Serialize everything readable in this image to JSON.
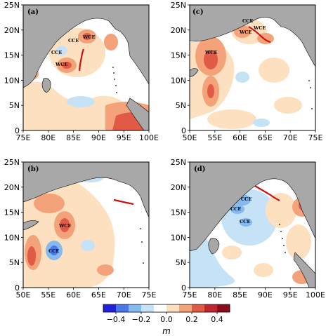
{
  "chart_data": [
    {
      "type": "heatmap",
      "panel_label": "(a)",
      "xticks": [
        "75E",
        "80E",
        "85E",
        "90E",
        "95E",
        "100E"
      ],
      "yticks": [
        "0",
        "5N",
        "10N",
        "15N",
        "20N",
        "25N"
      ],
      "xlim": [
        75,
        100
      ],
      "ylim": [
        0,
        25
      ],
      "annotations": [
        "CCE",
        "CCE",
        "WCE",
        "WCE"
      ]
    },
    {
      "type": "heatmap",
      "panel_label": "(c)",
      "xticks": [
        "50E",
        "55E",
        "60E",
        "65E",
        "70E",
        "75E"
      ],
      "yticks": [
        "0",
        "5N",
        "10N",
        "15N",
        "20N",
        "25N"
      ],
      "xlim": [
        50,
        75
      ],
      "ylim": [
        0,
        25
      ],
      "annotations": [
        "CCE",
        "WCE",
        "WCE",
        "WCE"
      ]
    },
    {
      "type": "heatmap",
      "panel_label": "(b)",
      "xticks": [
        "50E",
        "55E",
        "60E",
        "65E",
        "70E",
        "75E"
      ],
      "yticks": [
        "0",
        "5N",
        "10N",
        "15N",
        "20N",
        "25N"
      ],
      "xlim": [
        50,
        75
      ],
      "ylim": [
        0,
        25
      ],
      "annotations": [
        "WCE",
        "CCE"
      ]
    },
    {
      "type": "heatmap",
      "panel_label": "(d)",
      "xticks": [
        "75E",
        "80E",
        "85E",
        "90E",
        "95E",
        "100E"
      ],
      "yticks": [
        "0",
        "5N",
        "10N",
        "15N",
        "20N",
        "25N"
      ],
      "xlim": [
        75,
        100
      ],
      "ylim": [
        0,
        25
      ],
      "annotations": [
        "CCE",
        "CCE",
        "CCE"
      ]
    }
  ],
  "colorbar": {
    "ticks": [
      "−0.4",
      "−0.2",
      "0.0",
      "0.2",
      "0.4"
    ],
    "unit": "m",
    "range": [
      -0.5,
      0.5
    ],
    "colors": [
      "#2222dd",
      "#4a78e8",
      "#86b9ef",
      "#c6e2f6",
      "#ffffff",
      "#fde0bf",
      "#f4a27a",
      "#e05a45",
      "#c0272e",
      "#8b0e1c"
    ]
  },
  "colors": {
    "land": "#a8a8a8",
    "track": "#cc1111",
    "warm_light": "#fde0bf",
    "warm_mid": "#f4a27a",
    "warm_strong": "#e05a45",
    "cool_light": "#c6e2f6",
    "cool_mid": "#86b9ef"
  }
}
